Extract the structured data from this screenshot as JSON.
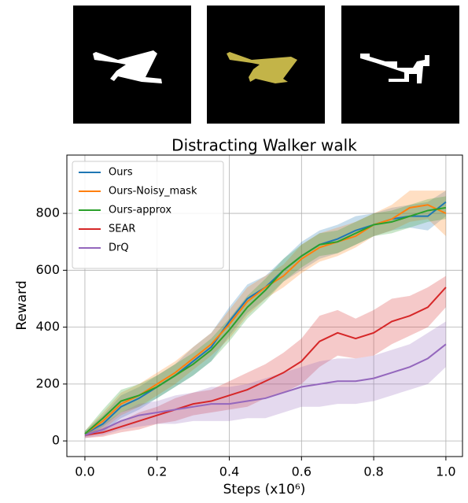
{
  "chart_data": {
    "type": "line",
    "title": "Distracting Walker walk",
    "x_label": "Steps (x10⁶)",
    "y_label": "Reward",
    "x": [
      0,
      0.05,
      0.1,
      0.15,
      0.2,
      0.25,
      0.3,
      0.35,
      0.4,
      0.45,
      0.5,
      0.55,
      0.6,
      0.65,
      0.7,
      0.75,
      0.8,
      0.85,
      0.9,
      0.95,
      1.0
    ],
    "series": [
      {
        "name": "Ours",
        "color": "#1f77b4",
        "values": [
          25,
          60,
          120,
          150,
          190,
          230,
          280,
          330,
          420,
          500,
          540,
          600,
          650,
          690,
          710,
          740,
          760,
          780,
          790,
          790,
          840
        ],
        "lower": [
          15,
          30,
          80,
          110,
          150,
          190,
          230,
          280,
          370,
          450,
          500,
          560,
          600,
          640,
          660,
          690,
          720,
          740,
          750,
          740,
          790
        ],
        "upper": [
          35,
          90,
          160,
          190,
          230,
          270,
          330,
          380,
          470,
          550,
          580,
          640,
          700,
          740,
          760,
          790,
          800,
          820,
          830,
          840,
          880
        ]
      },
      {
        "name": "Ours-Noisy_mask",
        "color": "#ff7f0e",
        "values": [
          25,
          70,
          130,
          160,
          200,
          240,
          290,
          340,
          410,
          490,
          540,
          580,
          640,
          680,
          700,
          720,
          760,
          780,
          820,
          830,
          800
        ],
        "lower": [
          15,
          40,
          90,
          120,
          160,
          200,
          250,
          300,
          360,
          440,
          500,
          540,
          590,
          630,
          650,
          680,
          720,
          740,
          770,
          780,
          720
        ],
        "upper": [
          35,
          100,
          170,
          200,
          240,
          280,
          330,
          380,
          460,
          540,
          580,
          620,
          690,
          730,
          750,
          770,
          800,
          830,
          880,
          880,
          880
        ]
      },
      {
        "name": "Ours-approx",
        "color": "#2ca02c",
        "values": [
          25,
          80,
          140,
          160,
          190,
          230,
          270,
          320,
          390,
          470,
          530,
          600,
          650,
          690,
          700,
          730,
          760,
          770,
          790,
          810,
          820
        ],
        "lower": [
          15,
          50,
          100,
          120,
          150,
          190,
          230,
          280,
          350,
          430,
          490,
          560,
          610,
          650,
          660,
          690,
          720,
          730,
          750,
          770,
          780
        ],
        "upper": [
          35,
          110,
          180,
          200,
          230,
          270,
          310,
          360,
          430,
          510,
          570,
          640,
          690,
          730,
          740,
          770,
          800,
          810,
          830,
          850,
          860
        ]
      },
      {
        "name": "SEAR",
        "color": "#d62728",
        "values": [
          20,
          30,
          50,
          70,
          90,
          110,
          130,
          140,
          160,
          180,
          210,
          240,
          280,
          350,
          380,
          360,
          380,
          420,
          440,
          470,
          540
        ],
        "lower": [
          10,
          15,
          30,
          40,
          60,
          70,
          90,
          100,
          110,
          120,
          150,
          170,
          200,
          260,
          300,
          290,
          300,
          340,
          370,
          400,
          470
        ],
        "upper": [
          30,
          45,
          70,
          100,
          120,
          150,
          170,
          180,
          210,
          240,
          270,
          310,
          360,
          440,
          460,
          430,
          460,
          500,
          510,
          540,
          580
        ]
      },
      {
        "name": "DrQ",
        "color": "#9467bd",
        "values": [
          20,
          40,
          70,
          90,
          100,
          110,
          120,
          130,
          130,
          140,
          150,
          170,
          190,
          200,
          210,
          210,
          220,
          240,
          260,
          290,
          340
        ],
        "lower": [
          10,
          20,
          40,
          50,
          60,
          60,
          70,
          70,
          70,
          80,
          80,
          100,
          120,
          120,
          130,
          130,
          140,
          160,
          180,
          200,
          260
        ],
        "upper": [
          30,
          60,
          100,
          130,
          140,
          160,
          170,
          190,
          190,
          200,
          220,
          240,
          260,
          280,
          290,
          290,
          300,
          320,
          340,
          380,
          420
        ]
      }
    ],
    "xlim": [
      -0.05,
      1.046
    ],
    "ylim": [
      -55,
      1005
    ],
    "xticks": [
      {
        "value": 0,
        "label": "0.0"
      },
      0.2,
      0.4,
      0.6,
      0.8,
      {
        "value": 1,
        "label": "1.0"
      }
    ],
    "yticks": [
      0,
      200,
      400,
      600,
      800
    ],
    "grid": true,
    "legend": "upper left"
  }
}
